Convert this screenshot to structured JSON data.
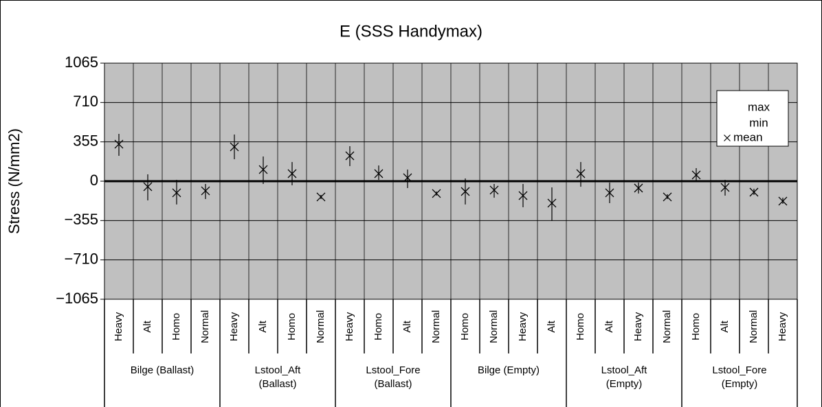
{
  "chart_data": {
    "type": "errorbar",
    "title": "E (SSS Handymax)",
    "y_label": "Stress (N/mm2)",
    "ylim": [
      -1065,
      1065
    ],
    "yticks": [
      1065,
      710,
      355,
      0,
      {
        "value": -355,
        "label": "−355"
      },
      {
        "value": -710,
        "label": "−710"
      },
      {
        "value": -1065,
        "label": "−1065"
      }
    ],
    "grid": true,
    "legend": "top-right",
    "background": "#c0c0c0",
    "categories": [
      "Heavy",
      "Alt",
      "Homo",
      "Normal",
      "Heavy",
      "Alt",
      "Homo",
      "Normal",
      "Heavy",
      "Homo",
      "Alt",
      "Normal",
      "Homo",
      "Normal",
      "Heavy",
      "Alt",
      "Homo",
      "Alt",
      "Heavy",
      "Normal",
      "Homo",
      "Alt",
      "Normal",
      "Heavy"
    ],
    "groups": [
      "Bilge (Ballast)",
      "Lstool_Aft\n(Ballast)",
      "Lstool_Fore\n(Ballast)",
      "Bilge (Empty)",
      "Lstool_Aft\n(Empty)",
      "Lstool_Fore\n(Empty)"
    ],
    "series": [
      {
        "name": "max",
        "color": "#000000",
        "values": [
          427,
          62,
          12,
          -25,
          421,
          223,
          173,
          -124,
          316,
          142,
          105,
          -93,
          25,
          -25,
          -25,
          -56,
          173,
          -12,
          -12,
          -118,
          118,
          12,
          -68,
          -149
        ]
      },
      {
        "name": "min",
        "color": "#000000",
        "values": [
          229,
          -173,
          -210,
          -161,
          198,
          -25,
          -37,
          -161,
          136,
          12,
          -62,
          -130,
          -210,
          -149,
          -235,
          -359,
          -50,
          -198,
          -111,
          -161,
          0,
          -130,
          -124,
          -204
        ]
      },
      {
        "name": "mean",
        "color": "#000000",
        "marker": "×",
        "values": [
          334,
          -50,
          -105,
          -87,
          310,
          105,
          68,
          -142,
          229,
          68,
          31,
          -111,
          -93,
          -80,
          -130,
          -198,
          68,
          -105,
          -62,
          -142,
          56,
          -56,
          -99,
          -180
        ]
      }
    ]
  }
}
